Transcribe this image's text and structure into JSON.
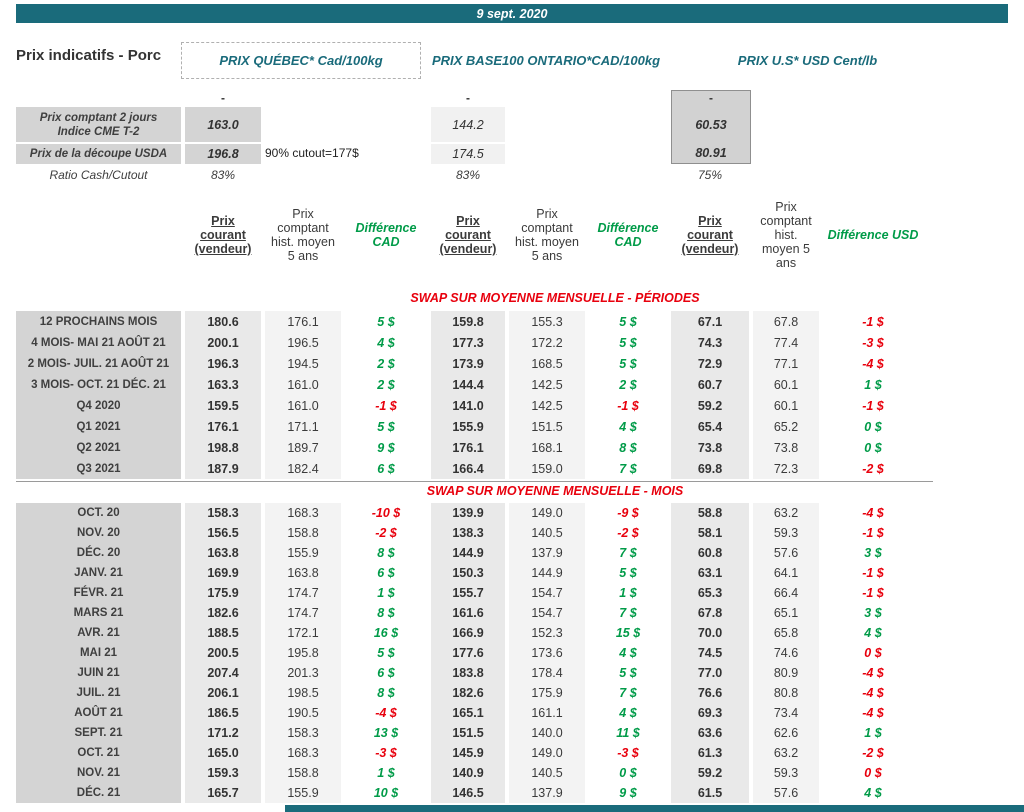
{
  "header": {
    "date": "9 sept. 2020",
    "title": "Prix indicatifs - Porc",
    "groups": [
      "PRIX QUÉBEC* Cad/100kg",
      "PRIX BASE100 ONTARIO*CAD/100kg",
      "PRIX U.S* USD Cent/lb"
    ]
  },
  "summary": {
    "placeholder": "-",
    "rows": [
      {
        "label": "Prix comptant 2 jours\nIndice CME T-2",
        "quebec": "163.0",
        "ontario": "144.2",
        "us": "60.53"
      },
      {
        "label": "Prix de la découpe USDA",
        "quebec": "196.8",
        "note": "90% cutout=177$",
        "ontario": "174.5",
        "us": "80.91"
      },
      {
        "label": "Ratio Cash/Cutout",
        "quebec": "83%",
        "ontario": "83%",
        "us": "75%"
      }
    ]
  },
  "columns": {
    "current": "Prix\ncourant\n(vendeur)",
    "hist": "Prix\ncomptant\nhist. moyen\n5 ans",
    "hist_us": "Prix\ncomptant\nhist.\nmoyen 5\nans",
    "diff_cad": "Différence\nCAD",
    "diff_usd": "Différence USD"
  },
  "sections": [
    {
      "title": "SWAP SUR MOYENNE MENSUELLE - PÉRIODES",
      "rows": [
        {
          "label": "12 PROCHAINS MOIS",
          "values": [
            "180.6",
            "176.1",
            "5 $",
            "159.8",
            "155.3",
            "5 $",
            "67.1",
            "67.8",
            "-1 $"
          ],
          "neg": [
            false,
            false,
            true
          ]
        },
        {
          "label": "4 MOIS- MAI 21 AOÛT 21",
          "values": [
            "200.1",
            "196.5",
            "4 $",
            "177.3",
            "172.2",
            "5 $",
            "74.3",
            "77.4",
            "-3 $"
          ],
          "neg": [
            false,
            false,
            true
          ]
        },
        {
          "label": "2 MOIS- JUIL. 21 AOÛT 21",
          "values": [
            "196.3",
            "194.5",
            "2 $",
            "173.9",
            "168.5",
            "5 $",
            "72.9",
            "77.1",
            "-4 $"
          ],
          "neg": [
            false,
            false,
            true
          ]
        },
        {
          "label": "3 MOIS- OCT. 21 DÉC. 21",
          "values": [
            "163.3",
            "161.0",
            "2 $",
            "144.4",
            "142.5",
            "2 $",
            "60.7",
            "60.1",
            "1 $"
          ],
          "neg": [
            false,
            false,
            false
          ]
        },
        {
          "label": "Q4 2020",
          "values": [
            "159.5",
            "161.0",
            "-1 $",
            "141.0",
            "142.5",
            "-1 $",
            "59.2",
            "60.1",
            "-1 $"
          ],
          "neg": [
            true,
            true,
            true
          ]
        },
        {
          "label": "Q1 2021",
          "values": [
            "176.1",
            "171.1",
            "5 $",
            "155.9",
            "151.5",
            "4 $",
            "65.4",
            "65.2",
            "0 $"
          ],
          "neg": [
            false,
            false,
            false
          ]
        },
        {
          "label": "Q2 2021",
          "values": [
            "198.8",
            "189.7",
            "9 $",
            "176.1",
            "168.1",
            "8 $",
            "73.8",
            "73.8",
            "0 $"
          ],
          "neg": [
            false,
            false,
            false
          ]
        },
        {
          "label": "Q3 2021",
          "values": [
            "187.9",
            "182.4",
            "6 $",
            "166.4",
            "159.0",
            "7 $",
            "69.8",
            "72.3",
            "-2 $"
          ],
          "neg": [
            false,
            false,
            true
          ]
        }
      ]
    },
    {
      "title": "SWAP SUR MOYENNE MENSUELLE - MOIS",
      "rows": [
        {
          "label": "OCT. 20",
          "values": [
            "158.3",
            "168.3",
            "-10 $",
            "139.9",
            "149.0",
            "-9 $",
            "58.8",
            "63.2",
            "-4 $"
          ],
          "neg": [
            true,
            true,
            true
          ]
        },
        {
          "label": "NOV. 20",
          "values": [
            "156.5",
            "158.8",
            "-2 $",
            "138.3",
            "140.5",
            "-2 $",
            "58.1",
            "59.3",
            "-1 $"
          ],
          "neg": [
            true,
            true,
            true
          ]
        },
        {
          "label": "DÉC. 20",
          "values": [
            "163.8",
            "155.9",
            "8 $",
            "144.9",
            "137.9",
            "7 $",
            "60.8",
            "57.6",
            "3 $"
          ],
          "neg": [
            false,
            false,
            false
          ]
        },
        {
          "label": "JANV. 21",
          "values": [
            "169.9",
            "163.8",
            "6 $",
            "150.3",
            "144.9",
            "5 $",
            "63.1",
            "64.1",
            "-1 $"
          ],
          "neg": [
            false,
            false,
            true
          ]
        },
        {
          "label": "FÉVR. 21",
          "values": [
            "175.9",
            "174.7",
            "1 $",
            "155.7",
            "154.7",
            "1 $",
            "65.3",
            "66.4",
            "-1 $"
          ],
          "neg": [
            false,
            false,
            true
          ]
        },
        {
          "label": "MARS 21",
          "values": [
            "182.6",
            "174.7",
            "8 $",
            "161.6",
            "154.7",
            "7 $",
            "67.8",
            "65.1",
            "3 $"
          ],
          "neg": [
            false,
            false,
            false
          ]
        },
        {
          "label": "AVR. 21",
          "values": [
            "188.5",
            "172.1",
            "16 $",
            "166.9",
            "152.3",
            "15 $",
            "70.0",
            "65.8",
            "4 $"
          ],
          "neg": [
            false,
            false,
            false
          ]
        },
        {
          "label": "MAI 21",
          "values": [
            "200.5",
            "195.8",
            "5 $",
            "177.6",
            "173.6",
            "4 $",
            "74.5",
            "74.6",
            "0 $"
          ],
          "neg": [
            false,
            false,
            true
          ]
        },
        {
          "label": "JUIN 21",
          "values": [
            "207.4",
            "201.3",
            "6 $",
            "183.8",
            "178.4",
            "5 $",
            "77.0",
            "80.9",
            "-4 $"
          ],
          "neg": [
            false,
            false,
            true
          ]
        },
        {
          "label": "JUIL. 21",
          "values": [
            "206.1",
            "198.5",
            "8 $",
            "182.6",
            "175.9",
            "7 $",
            "76.6",
            "80.8",
            "-4 $"
          ],
          "neg": [
            false,
            false,
            true
          ]
        },
        {
          "label": "AOÛT 21",
          "values": [
            "186.5",
            "190.5",
            "-4 $",
            "165.1",
            "161.1",
            "4 $",
            "69.3",
            "73.4",
            "-4 $"
          ],
          "neg": [
            true,
            false,
            true
          ]
        },
        {
          "label": "SEPT. 21",
          "values": [
            "171.2",
            "158.3",
            "13 $",
            "151.5",
            "140.0",
            "11 $",
            "63.6",
            "62.6",
            "1 $"
          ],
          "neg": [
            false,
            false,
            false
          ]
        },
        {
          "label": "OCT. 21",
          "values": [
            "165.0",
            "168.3",
            "-3 $",
            "145.9",
            "149.0",
            "-3 $",
            "61.3",
            "63.2",
            "-2 $"
          ],
          "neg": [
            true,
            true,
            true
          ]
        },
        {
          "label": "NOV. 21",
          "values": [
            "159.3",
            "158.8",
            "1 $",
            "140.9",
            "140.5",
            "0 $",
            "59.2",
            "59.3",
            "0 $"
          ],
          "neg": [
            false,
            false,
            true
          ]
        },
        {
          "label": "DÉC. 21",
          "values": [
            "165.7",
            "155.9",
            "10 $",
            "146.5",
            "137.9",
            "9 $",
            "61.5",
            "57.6",
            "4 $"
          ],
          "neg": [
            false,
            false,
            false
          ]
        }
      ]
    }
  ],
  "colors": {
    "teal": "#1a6b7b",
    "pos": "#009b48",
    "neg": "#e8000d"
  }
}
